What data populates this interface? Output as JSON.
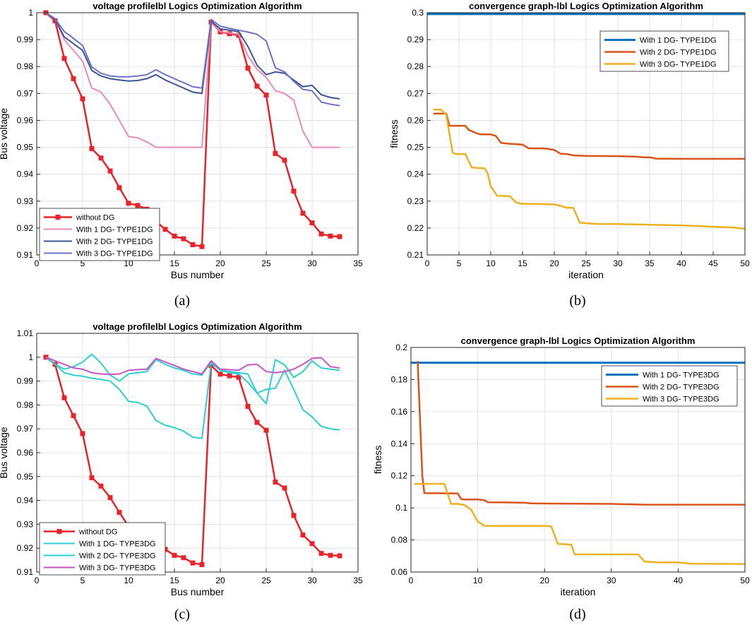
{
  "chart_data": [
    {
      "type": "line",
      "panel_label": "(a)",
      "title": "voltage profilelbl Logics Optimization Algorithm",
      "xlabel": "Bus number",
      "ylabel": "Bus voltage",
      "xlim": [
        0,
        35
      ],
      "ylim": [
        0.91,
        1.0
      ],
      "xticks": [
        0,
        5,
        10,
        15,
        20,
        25,
        30,
        35
      ],
      "yticks": [
        0.91,
        0.92,
        0.93,
        0.94,
        0.95,
        0.96,
        0.97,
        0.98,
        0.99,
        1.0
      ],
      "ytick_labels": [
        "0.91",
        "0.92",
        "0.93",
        "0.94",
        "0.95",
        "0.96",
        "0.97",
        "0.98",
        "0.99",
        "1"
      ],
      "grid": true,
      "legend_position": "bottom-left",
      "series": [
        {
          "name": "without DG",
          "color": "#e8232a",
          "marker": "square",
          "width": 2.5,
          "x": [
            1,
            2,
            3,
            4,
            5,
            6,
            7,
            8,
            9,
            10,
            11,
            12,
            13,
            14,
            15,
            16,
            17,
            18,
            19,
            20,
            21,
            22,
            23,
            24,
            25,
            26,
            27,
            28,
            29,
            30,
            31,
            32,
            33
          ],
          "y": [
            1.0,
            0.997,
            0.983,
            0.9755,
            0.968,
            0.9495,
            0.946,
            0.9412,
            0.935,
            0.9292,
            0.9284,
            0.927,
            0.9225,
            0.9195,
            0.917,
            0.916,
            0.9138,
            0.9131,
            0.9965,
            0.9929,
            0.9922,
            0.9916,
            0.9794,
            0.9727,
            0.9694,
            0.9477,
            0.9452,
            0.9337,
            0.9255,
            0.9219,
            0.9178,
            0.917,
            0.9168
          ]
        },
        {
          "name": "With 1  DG- TYPE1DG",
          "color": "#e98bb5",
          "width": 2,
          "x": [
            1,
            2,
            3,
            4,
            5,
            6,
            7,
            8,
            9,
            10,
            11,
            12,
            13,
            14,
            15,
            16,
            17,
            18,
            19,
            20,
            21,
            22,
            23,
            24,
            25,
            26,
            27,
            28,
            29,
            30,
            31,
            32,
            33
          ],
          "y": [
            1.0,
            0.9975,
            0.99,
            0.986,
            0.982,
            0.972,
            0.9705,
            0.966,
            0.96,
            0.954,
            0.9535,
            0.952,
            0.95,
            0.95,
            0.95,
            0.95,
            0.95,
            0.95,
            0.9965,
            0.993,
            0.9925,
            0.992,
            0.984,
            0.979,
            0.976,
            0.971,
            0.97,
            0.9675,
            0.956,
            0.95,
            0.95,
            0.95,
            0.95
          ]
        },
        {
          "name": "With 2  DG- TYPE1DG",
          "color": "#3c5594",
          "width": 2,
          "x": [
            1,
            2,
            3,
            4,
            5,
            6,
            7,
            8,
            9,
            10,
            11,
            12,
            13,
            14,
            15,
            16,
            17,
            18,
            19,
            20,
            21,
            22,
            23,
            24,
            25,
            26,
            27,
            28,
            29,
            30,
            31,
            32,
            33
          ],
          "y": [
            1.0,
            0.9975,
            0.991,
            0.9885,
            0.986,
            0.9785,
            0.9765,
            0.9755,
            0.975,
            0.9746,
            0.9748,
            0.9755,
            0.977,
            0.975,
            0.9735,
            0.972,
            0.9705,
            0.97,
            0.9968,
            0.994,
            0.9935,
            0.993,
            0.9875,
            0.9805,
            0.977,
            0.978,
            0.9775,
            0.975,
            0.9725,
            0.973,
            0.9695,
            0.9685,
            0.968
          ]
        },
        {
          "name": "With 3  DG- TYPE1DG",
          "color": "#6e73c7",
          "width": 2,
          "x": [
            1,
            2,
            3,
            4,
            5,
            6,
            7,
            8,
            9,
            10,
            11,
            12,
            13,
            14,
            15,
            16,
            17,
            18,
            19,
            20,
            21,
            22,
            23,
            24,
            25,
            26,
            27,
            28,
            29,
            30,
            31,
            32,
            33
          ],
          "y": [
            1.0,
            0.9978,
            0.993,
            0.9905,
            0.9878,
            0.9798,
            0.9775,
            0.9765,
            0.9762,
            0.9762,
            0.9765,
            0.977,
            0.9788,
            0.977,
            0.9755,
            0.974,
            0.9725,
            0.972,
            0.9975,
            0.995,
            0.9942,
            0.9935,
            0.9928,
            0.992,
            0.9895,
            0.9795,
            0.978,
            0.9745,
            0.9715,
            0.971,
            0.9668,
            0.966,
            0.9655
          ]
        }
      ]
    },
    {
      "type": "line",
      "panel_label": "(b)",
      "title": "convergence graph-lbl Logics Optimization Algorithm",
      "xlabel": "iteration",
      "ylabel": "fitness",
      "xlim": [
        0,
        50
      ],
      "ylim": [
        0.21,
        0.3
      ],
      "xticks": [
        0,
        5,
        10,
        15,
        20,
        25,
        30,
        35,
        40,
        45,
        50
      ],
      "yticks": [
        0.21,
        0.22,
        0.23,
        0.24,
        0.25,
        0.26,
        0.27,
        0.28,
        0.29,
        0.3
      ],
      "ytick_labels": [
        "0.21",
        "0.22",
        "0.23",
        "0.24",
        "0.25",
        "0.26",
        "0.27",
        "0.28",
        "0.29",
        "0.3"
      ],
      "grid": true,
      "legend_position": "top-right",
      "series": [
        {
          "name": "With 1  DG- TYPE1DG",
          "color": "#0c72bd",
          "width": 3,
          "x": [
            0,
            50
          ],
          "y": [
            0.2995,
            0.2995
          ]
        },
        {
          "name": "With 2  DG- TYPE1DG",
          "color": "#d9541a",
          "width": 2.5,
          "x": [
            1,
            3,
            3.5,
            6,
            6.5,
            8,
            8.5,
            10,
            10.8,
            11.6,
            12,
            13,
            15,
            16,
            18,
            19,
            20,
            21,
            22,
            23,
            25,
            30,
            33,
            34,
            35,
            36,
            40,
            50
          ],
          "y": [
            0.2625,
            0.2625,
            0.258,
            0.258,
            0.2565,
            0.255,
            0.2548,
            0.2548,
            0.2542,
            0.2517,
            0.2515,
            0.2513,
            0.251,
            0.2496,
            0.2496,
            0.2494,
            0.249,
            0.2476,
            0.2475,
            0.247,
            0.2468,
            0.2467,
            0.2465,
            0.2463,
            0.2463,
            0.2458,
            0.2457,
            0.2457
          ]
        },
        {
          "name": "With 3  DG- TYPE1DG",
          "color": "#edb120",
          "width": 2.5,
          "x": [
            1,
            2.2,
            3,
            4,
            4.5,
            6,
            7,
            8,
            9,
            9.5,
            10,
            11,
            12,
            13,
            14,
            15,
            16,
            20,
            21,
            22,
            23,
            24,
            25,
            27,
            30,
            35,
            40,
            45,
            48,
            50
          ],
          "y": [
            0.264,
            0.264,
            0.262,
            0.248,
            0.2475,
            0.2475,
            0.2425,
            0.2423,
            0.2422,
            0.2405,
            0.2355,
            0.232,
            0.2319,
            0.2318,
            0.2295,
            0.229,
            0.229,
            0.2288,
            0.2282,
            0.2275,
            0.2275,
            0.222,
            0.2218,
            0.2215,
            0.2215,
            0.2212,
            0.221,
            0.2205,
            0.2202,
            0.2197
          ]
        }
      ]
    },
    {
      "type": "line",
      "panel_label": "(c)",
      "title": "voltage profilelbl Logics Optimization Algorithm",
      "xlabel": "Bus number",
      "ylabel": "Bus voltage",
      "xlim": [
        0,
        35
      ],
      "ylim": [
        0.91,
        1.01
      ],
      "xticks": [
        0,
        5,
        10,
        15,
        20,
        25,
        30,
        35
      ],
      "yticks": [
        0.91,
        0.92,
        0.93,
        0.94,
        0.95,
        0.96,
        0.97,
        0.98,
        0.99,
        1.0,
        1.01
      ],
      "ytick_labels": [
        "0.91",
        "0.92",
        "0.93",
        "0.94",
        "0.95",
        "0.96",
        "0.97",
        "0.98",
        "0.99",
        "1",
        "1.01"
      ],
      "grid": true,
      "legend_position": "bottom-left",
      "series": [
        {
          "name": "without DG",
          "color": "#e8232a",
          "marker": "square",
          "width": 2.5,
          "x": [
            1,
            2,
            3,
            4,
            5,
            6,
            7,
            8,
            9,
            10,
            11,
            12,
            13,
            14,
            15,
            16,
            17,
            18,
            19,
            20,
            21,
            22,
            23,
            24,
            25,
            26,
            27,
            28,
            29,
            30,
            31,
            32,
            33
          ],
          "y": [
            1.0,
            0.997,
            0.983,
            0.9755,
            0.968,
            0.9495,
            0.946,
            0.9412,
            0.935,
            0.9292,
            0.9284,
            0.927,
            0.9225,
            0.9195,
            0.917,
            0.916,
            0.9138,
            0.9131,
            0.9965,
            0.9929,
            0.9922,
            0.9916,
            0.9794,
            0.9727,
            0.9694,
            0.9477,
            0.9452,
            0.9337,
            0.9255,
            0.9219,
            0.9178,
            0.917,
            0.9168
          ]
        },
        {
          "name": "With 1  DG- TYPE3DG",
          "color": "#2ccfcf",
          "width": 2,
          "x": [
            1,
            2,
            3,
            4,
            5,
            6,
            7,
            8,
            9,
            10,
            11,
            12,
            13,
            14,
            15,
            16,
            17,
            18,
            19,
            20,
            21,
            22,
            23,
            24,
            25,
            26,
            27,
            28,
            29,
            30,
            31,
            32,
            33
          ],
          "y": [
            1.0,
            0.997,
            0.9935,
            0.9925,
            0.992,
            0.9912,
            0.9907,
            0.99,
            0.9865,
            0.9815,
            0.981,
            0.9795,
            0.9735,
            0.9715,
            0.9705,
            0.969,
            0.9665,
            0.966,
            0.9975,
            0.9945,
            0.9935,
            0.993,
            0.9895,
            0.985,
            0.9865,
            0.987,
            0.9945,
            0.9865,
            0.978,
            0.975,
            0.971,
            0.97,
            0.9695
          ]
        },
        {
          "name": "With 2  DG- TYPE3DG",
          "color": "#2ccfcf",
          "width": 2,
          "x": [
            1,
            2,
            3,
            4,
            5,
            6,
            7,
            8,
            9,
            10,
            11,
            12,
            13,
            14,
            15,
            16,
            17,
            18,
            19,
            20,
            21,
            22,
            23,
            24,
            25,
            26,
            27,
            28,
            29,
            30,
            31,
            32,
            33
          ],
          "y": [
            1.0,
            0.997,
            0.995,
            0.996,
            0.998,
            1.0012,
            0.9975,
            0.9925,
            0.99,
            0.993,
            0.9935,
            0.994,
            0.999,
            0.997,
            0.9955,
            0.9945,
            0.993,
            0.9925,
            0.998,
            0.9945,
            0.994,
            0.9935,
            0.993,
            0.985,
            0.9805,
            0.999,
            0.9968,
            0.9915,
            0.994,
            0.9985,
            0.9955,
            0.995,
            0.9945
          ]
        },
        {
          "name": "With 3  DG- TYPE3DG",
          "color": "#c656c4",
          "width": 2,
          "x": [
            1,
            2,
            3,
            4,
            5,
            6,
            7,
            8,
            9,
            10,
            11,
            12,
            13,
            14,
            15,
            16,
            17,
            18,
            19,
            20,
            21,
            22,
            23,
            24,
            25,
            26,
            27,
            28,
            29,
            30,
            31,
            32,
            33
          ],
          "y": [
            1.0,
            0.9985,
            0.997,
            0.9955,
            0.995,
            0.9935,
            0.993,
            0.9928,
            0.993,
            0.9945,
            0.9948,
            0.995,
            0.9995,
            0.998,
            0.9965,
            0.995,
            0.994,
            0.993,
            0.9985,
            0.995,
            0.9948,
            0.9945,
            0.9968,
            0.997,
            0.994,
            0.9935,
            0.994,
            0.995,
            0.997,
            0.9995,
            0.9998,
            0.996,
            0.9955
          ]
        }
      ]
    },
    {
      "type": "line",
      "panel_label": "(d)",
      "title": "convergence graph-lbl Logics Optimization Algorithm",
      "xlabel": "iteration",
      "ylabel": "fitness",
      "xlim": [
        0,
        50
      ],
      "ylim": [
        0.06,
        0.2
      ],
      "xticks": [
        0,
        10,
        20,
        30,
        40,
        50
      ],
      "yticks": [
        0.06,
        0.08,
        0.1,
        0.12,
        0.14,
        0.16,
        0.18,
        0.2
      ],
      "ytick_labels": [
        "0.06",
        "0.08",
        "0.1",
        "0.12",
        "0.14",
        "0.16",
        "0.18",
        "0.2"
      ],
      "grid": true,
      "legend_position": "top-right",
      "series": [
        {
          "name": "With 1  DG- TYPE3DG",
          "color": "#0c72bd",
          "width": 3,
          "x": [
            0,
            50
          ],
          "y": [
            0.1905,
            0.1905
          ]
        },
        {
          "name": "With 2  DG- TYPE3DG",
          "color": "#d9541a",
          "width": 2.5,
          "x": [
            1,
            1.7,
            2,
            7,
            7.5,
            8,
            10,
            11,
            11.5,
            14,
            17,
            18,
            20,
            30,
            35,
            50
          ],
          "y": [
            0.1915,
            0.12,
            0.1092,
            0.109,
            0.1055,
            0.1052,
            0.1052,
            0.1048,
            0.1035,
            0.1034,
            0.1032,
            0.1028,
            0.1027,
            0.1025,
            0.102,
            0.102
          ]
        },
        {
          "name": "With 3  DG- TYPE3DG",
          "color": "#edb120",
          "width": 2.5,
          "x": [
            0.5,
            5,
            6,
            7,
            8,
            9,
            10,
            11,
            12,
            20,
            21,
            22,
            23,
            24,
            24.5,
            30,
            34,
            35,
            36,
            37,
            40,
            42,
            45,
            50
          ],
          "y": [
            0.115,
            0.115,
            0.1025,
            0.1025,
            0.1018,
            0.099,
            0.0915,
            0.0888,
            0.0888,
            0.0888,
            0.0885,
            0.0775,
            0.0774,
            0.077,
            0.071,
            0.071,
            0.071,
            0.0665,
            0.0663,
            0.066,
            0.066,
            0.0652,
            0.0651,
            0.065
          ]
        }
      ]
    }
  ]
}
